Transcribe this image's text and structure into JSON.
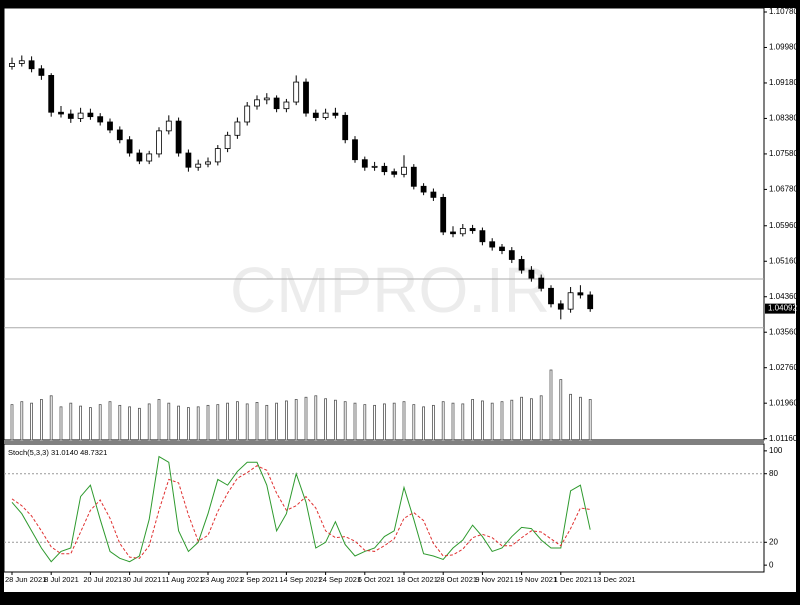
{
  "chart_data": {
    "type": "candlestick",
    "watermark": "CMPRO.IR",
    "ylim": [
      1.0113,
      1.1087
    ],
    "yticks": [
      {
        "value": 1.1078,
        "label": "1.10780"
      },
      {
        "value": 1.0998,
        "label": "1.09980"
      },
      {
        "value": 1.0918,
        "label": "1.09180"
      },
      {
        "value": 1.0838,
        "label": "1.08380"
      },
      {
        "value": 1.0758,
        "label": "1.07580"
      },
      {
        "value": 1.0678,
        "label": "1.06780"
      },
      {
        "value": 1.0596,
        "label": "1.05960"
      },
      {
        "value": 1.0516,
        "label": "1.05160"
      },
      {
        "value": 1.0436,
        "label": "1.04360"
      },
      {
        "value": 1.0356,
        "label": "1.03560"
      },
      {
        "value": 1.0276,
        "label": "1.02760"
      },
      {
        "value": 1.0196,
        "label": "1.01960"
      },
      {
        "value": 1.0116,
        "label": "1.01160"
      }
    ],
    "last_price": 1.04092,
    "levels": [
      1.0476,
      1.0366
    ],
    "up_color": "#ffffff",
    "down_color": "#000000",
    "volume_color": "#555555",
    "categories": [
      "28 Jun 2021",
      null,
      null,
      null,
      "8 Jul 2021",
      null,
      null,
      null,
      "20 Jul 2021",
      null,
      null,
      null,
      "30 Jul 2021",
      null,
      null,
      null,
      "11 Aug 2021",
      null,
      null,
      null,
      "23 Aug 2021",
      null,
      null,
      null,
      "2 Sep 2021",
      null,
      null,
      null,
      "14 Sep 2021",
      null,
      null,
      null,
      "24 Sep 2021",
      null,
      null,
      null,
      "6 Oct 2021",
      null,
      null,
      null,
      "18 Oct 2021",
      null,
      null,
      null,
      "28 Oct 2021",
      null,
      null,
      null,
      "9 Nov 2021",
      null,
      null,
      null,
      "19 Nov 2021",
      null,
      null,
      null,
      "1 Dec 2021",
      null,
      null,
      null,
      "13 Dec 2021"
    ],
    "ohlc": [
      [
        1.0955,
        1.0975,
        1.0948,
        1.0962
      ],
      [
        1.0962,
        1.098,
        1.0955,
        1.0968
      ],
      [
        1.0968,
        1.0978,
        1.0942,
        1.095
      ],
      [
        1.095,
        1.0958,
        1.0925,
        1.0935
      ],
      [
        1.0935,
        1.094,
        1.0842,
        1.0852
      ],
      [
        1.0852,
        1.0866,
        1.084,
        1.0848
      ],
      [
        1.0848,
        1.0858,
        1.0828,
        1.0838
      ],
      [
        1.0838,
        1.0862,
        1.083,
        1.085
      ],
      [
        1.085,
        1.086,
        1.0835,
        1.0842
      ],
      [
        1.0842,
        1.085,
        1.0822,
        1.083
      ],
      [
        1.083,
        1.0838,
        1.0805,
        1.0812
      ],
      [
        1.0812,
        1.082,
        1.0782,
        1.079
      ],
      [
        1.079,
        1.0798,
        1.0752,
        1.076
      ],
      [
        1.076,
        1.0768,
        1.0735,
        1.0742
      ],
      [
        1.0742,
        1.0765,
        1.0735,
        1.0758
      ],
      [
        1.0758,
        1.0818,
        1.075,
        1.081
      ],
      [
        1.081,
        1.0845,
        1.0802,
        1.0832
      ],
      [
        1.0832,
        1.084,
        1.0752,
        1.076
      ],
      [
        1.076,
        1.0768,
        1.0718,
        1.0728
      ],
      [
        1.0728,
        1.0745,
        1.072,
        1.0735
      ],
      [
        1.0735,
        1.075,
        1.0728,
        1.074
      ],
      [
        1.074,
        1.0778,
        1.0732,
        1.077
      ],
      [
        1.077,
        1.0808,
        1.0762,
        1.08
      ],
      [
        1.08,
        1.084,
        1.0792,
        1.083
      ],
      [
        1.083,
        1.0875,
        1.0822,
        1.0866
      ],
      [
        1.0866,
        1.089,
        1.0858,
        1.088
      ],
      [
        1.088,
        1.0895,
        1.087,
        1.0884
      ],
      [
        1.0884,
        1.089,
        1.0852,
        1.086
      ],
      [
        1.086,
        1.0882,
        1.0852,
        1.0875
      ],
      [
        1.0875,
        1.0935,
        1.0868,
        1.092
      ],
      [
        1.092,
        1.0928,
        1.0842,
        1.085
      ],
      [
        1.085,
        1.0858,
        1.0832,
        1.084
      ],
      [
        1.084,
        1.086,
        1.0835,
        1.085
      ],
      [
        1.085,
        1.0862,
        1.0838,
        1.0845
      ],
      [
        1.0845,
        1.0852,
        1.0782,
        1.079
      ],
      [
        1.079,
        1.0798,
        1.0738,
        1.0745
      ],
      [
        1.0745,
        1.0752,
        1.072,
        1.0728
      ],
      [
        1.0728,
        1.074,
        1.072,
        1.073
      ],
      [
        1.073,
        1.0738,
        1.071,
        1.0718
      ],
      [
        1.0718,
        1.0725,
        1.0705,
        1.0712
      ],
      [
        1.0712,
        1.0755,
        1.0705,
        1.0728
      ],
      [
        1.0728,
        1.0735,
        1.0678,
        1.0685
      ],
      [
        1.0685,
        1.0692,
        1.0665,
        1.0672
      ],
      [
        1.0672,
        1.068,
        1.0652,
        1.066
      ],
      [
        1.066,
        1.0668,
        1.0575,
        1.0582
      ],
      [
        1.0582,
        1.0595,
        1.057,
        1.0578
      ],
      [
        1.0578,
        1.06,
        1.0572,
        1.059
      ],
      [
        1.059,
        1.0598,
        1.0578,
        1.0585
      ],
      [
        1.0585,
        1.0592,
        1.0552,
        1.056
      ],
      [
        1.056,
        1.0568,
        1.054,
        1.0548
      ],
      [
        1.0548,
        1.0555,
        1.0532,
        1.054
      ],
      [
        1.054,
        1.0548,
        1.0512,
        1.052
      ],
      [
        1.052,
        1.0528,
        1.0488,
        1.0496
      ],
      [
        1.0496,
        1.0505,
        1.047,
        1.0478
      ],
      [
        1.0478,
        1.0486,
        1.0448,
        1.0455
      ],
      [
        1.0455,
        1.0462,
        1.0412,
        1.042
      ],
      [
        1.042,
        1.0428,
        1.0385,
        1.0408
      ],
      [
        1.0408,
        1.0458,
        1.04,
        1.0445
      ],
      [
        1.0445,
        1.0462,
        1.0432,
        1.044
      ],
      [
        1.044,
        1.0448,
        1.0402,
        1.0409
      ],
      null
    ],
    "volume": [
      48000,
      52000,
      50000,
      55000,
      60000,
      45000,
      50000,
      46000,
      44000,
      48000,
      52000,
      47000,
      45000,
      43000,
      49000,
      55000,
      50000,
      46000,
      44000,
      45000,
      47000,
      48000,
      50000,
      52000,
      49000,
      51000,
      47000,
      50000,
      53000,
      55000,
      58000,
      60000,
      56000,
      54000,
      52000,
      50000,
      48000,
      47000,
      49000,
      50000,
      52000,
      48000,
      45000,
      47000,
      52000,
      50000,
      49000,
      55000,
      53000,
      50000,
      52000,
      54000,
      58000,
      56000,
      60000,
      95000,
      82000,
      62000,
      58000,
      55000,
      null
    ],
    "stochastic": {
      "title": "Stoch(5,3,3) 31.0140 48.7321",
      "ylim": [
        -6,
        106
      ],
      "yticks": [
        100,
        80,
        20,
        0
      ],
      "levels": [
        80,
        20
      ],
      "main_color": "#2e9a2e",
      "signal_color": "#e03030",
      "main": [
        55,
        45,
        30,
        15,
        3,
        12,
        15,
        60,
        70,
        40,
        12,
        6,
        3,
        8,
        40,
        95,
        90,
        30,
        12,
        20,
        45,
        75,
        70,
        82,
        90,
        90,
        70,
        30,
        45,
        80,
        55,
        15,
        20,
        38,
        18,
        8,
        12,
        15,
        25,
        30,
        68,
        40,
        10,
        8,
        5,
        15,
        22,
        35,
        25,
        12,
        15,
        25,
        33,
        32,
        22,
        15,
        15,
        65,
        70,
        31.014,
        null
      ],
      "signal": [
        58,
        52,
        43,
        30,
        16,
        10,
        10,
        29,
        48,
        57,
        41,
        19,
        7,
        6,
        17,
        48,
        75,
        72,
        44,
        21,
        26,
        47,
        63,
        76,
        81,
        87,
        83,
        63,
        48,
        52,
        60,
        50,
        30,
        24,
        25,
        21,
        13,
        12,
        17,
        23,
        41,
        46,
        39,
        19,
        8,
        9,
        14,
        24,
        27,
        24,
        17,
        17,
        24,
        30,
        29,
        23,
        17,
        32,
        50,
        48.7321,
        null
      ]
    }
  }
}
